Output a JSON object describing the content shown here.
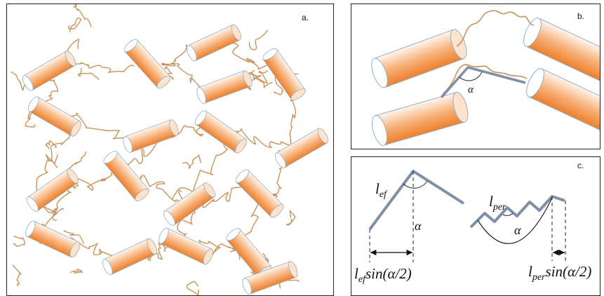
{
  "panels": {
    "a": {
      "label": "a."
    },
    "b": {
      "label": "b.",
      "angle_symbol": "α"
    },
    "c": {
      "label": "c.",
      "left": {
        "length_main": "l",
        "length_sub": "ef",
        "angle_symbol": "α",
        "formula_l": "l",
        "formula_sub": "ef",
        "formula_rest": "sin(α/2)"
      },
      "right": {
        "length_main": "l",
        "length_sub": "per",
        "angle_symbol": "α",
        "formula_l": "l",
        "formula_sub": "per",
        "formula_rest": "sin(α/2)"
      }
    }
  },
  "colors": {
    "rod_orange": "#f08a3a",
    "rod_light": "#fff6ee",
    "rod_outline": "#8fb0c8",
    "chain": "#c8935a",
    "chain_dark": "#8a5a30",
    "bent_segment": "#7e8fa6"
  }
}
